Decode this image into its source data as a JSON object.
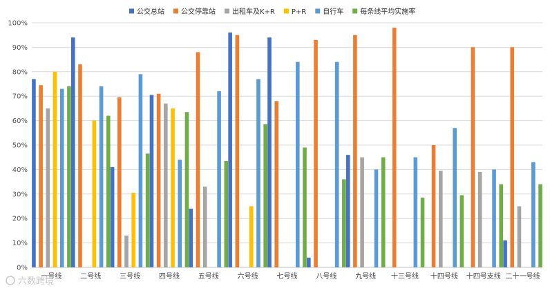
{
  "chart_data": {
    "type": "bar",
    "title": "",
    "xlabel": "",
    "ylabel": "",
    "ylim": [
      0,
      100
    ],
    "yticks": [
      "0%",
      "10%",
      "20%",
      "30%",
      "40%",
      "50%",
      "60%",
      "70%",
      "80%",
      "90%",
      "100%"
    ],
    "grid": true,
    "legend_position": "top",
    "categories": [
      "一号线",
      "二号线",
      "三号线",
      "四号线",
      "五号线",
      "六号线",
      "七号线",
      "八号线",
      "九号线",
      "十三号线",
      "十四号线",
      "十四号支线",
      "二十一号线"
    ],
    "series": [
      {
        "name": "公交总站",
        "color": "#4472c4",
        "values": [
          77,
          94,
          41,
          70.5,
          24,
          96,
          94,
          4,
          46,
          null,
          null,
          null,
          11
        ]
      },
      {
        "name": "公交停靠站",
        "color": "#ed7d31",
        "values": [
          74.5,
          83,
          69.5,
          71,
          88,
          95,
          68,
          93,
          95,
          98,
          50,
          90,
          90
        ]
      },
      {
        "name": "出租车及K+R",
        "color": "#a5a5a5",
        "values": [
          65,
          null,
          13,
          67,
          33,
          null,
          null,
          null,
          45,
          null,
          39.5,
          39,
          25
        ]
      },
      {
        "name": "P+R",
        "color": "#ffc000",
        "values": [
          80,
          60,
          30.5,
          65,
          null,
          25,
          null,
          null,
          null,
          null,
          null,
          null,
          null
        ]
      },
      {
        "name": "自行车",
        "color": "#5b9bd5",
        "values": [
          73,
          74,
          79,
          44,
          72,
          77,
          84,
          84,
          40,
          45,
          57,
          40,
          43
        ]
      },
      {
        "name": "每条线平均实施率",
        "color": "#70ad47",
        "values": [
          74,
          62,
          46.5,
          63.5,
          43.5,
          58.5,
          49,
          36,
          45,
          28.5,
          29.5,
          34,
          34
        ]
      }
    ]
  },
  "watermark": "六数跨境"
}
